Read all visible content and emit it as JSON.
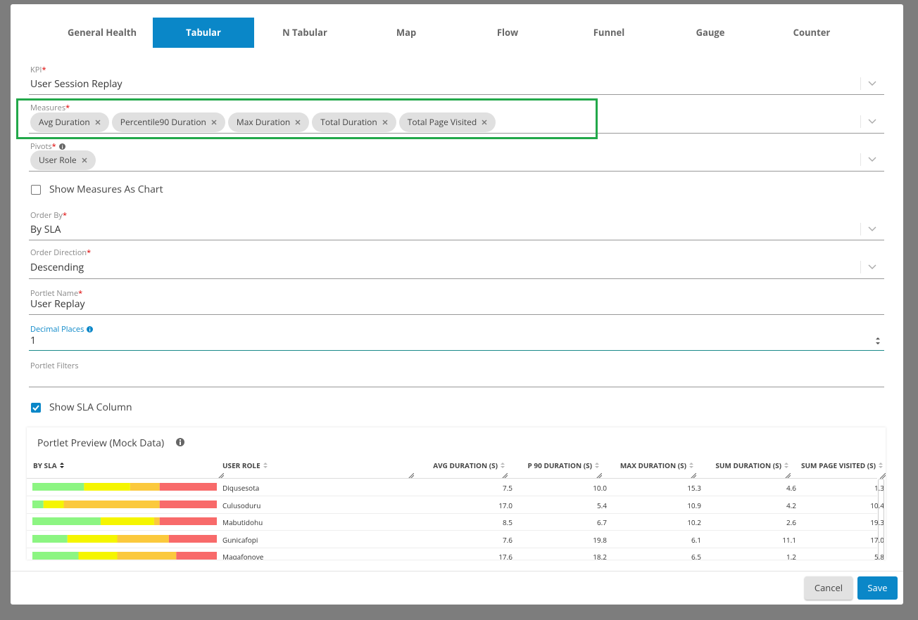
{
  "tabs": [
    "General Health",
    "Tabular",
    "N Tabular",
    "Map",
    "Flow",
    "Funnel",
    "Gauge",
    "Counter"
  ],
  "required_mark": "*",
  "form": {
    "kpi": {
      "label": "KPI",
      "value": "User Session Replay"
    },
    "measures": {
      "label": "Measures",
      "chips": [
        "Avg Duration",
        "Percentile90 Duration",
        "Max Duration",
        "Total Duration",
        "Total Page Visited"
      ]
    },
    "pivots": {
      "label": "Pivots",
      "chips": [
        "User Role"
      ]
    },
    "show_measures_as_chart": {
      "label": "Show Measures As Chart",
      "checked": false
    },
    "order_by": {
      "label": "Order By",
      "value": "By SLA"
    },
    "order_direction": {
      "label": "Order Direction",
      "value": "Descending"
    },
    "portlet_name": {
      "label": "Portlet Name",
      "value": "User Replay"
    },
    "decimal_places": {
      "label": "Decimal Places",
      "value": "1"
    },
    "portlet_filters": {
      "label": "Portlet Filters"
    },
    "show_sla_column": {
      "label": "Show SLA Column",
      "checked": true
    }
  },
  "preview": {
    "title": "Portlet Preview (Mock Data)",
    "columns": [
      "BY SLA",
      "USER ROLE",
      "AVG DURATION (S)",
      "P 90 DURATION (S)",
      "MAX DURATION (S)",
      "SUM DURATION (S)",
      "SUM PAGE VISITED (S)"
    ],
    "rows": [
      {
        "sla": [
          28,
          25,
          16,
          31
        ],
        "cells": [
          "Diqusesota",
          "7.5",
          "10.0",
          "15.3",
          "4.6",
          "1.3"
        ]
      },
      {
        "sla": [
          6,
          11,
          52,
          31
        ],
        "cells": [
          "Culusoduru",
          "17.0",
          "5.4",
          "10.9",
          "4.2",
          "10.4"
        ]
      },
      {
        "sla": [
          37,
          29,
          3,
          31
        ],
        "cells": [
          "Mabutidohu",
          "8.5",
          "6.7",
          "10.2",
          "2.6",
          "19.3"
        ]
      },
      {
        "sla": [
          19,
          27,
          28,
          26
        ],
        "cells": [
          "Gunicafopi",
          "7.6",
          "19.8",
          "6.1",
          "11.1",
          "17.0"
        ]
      },
      {
        "sla": [
          25,
          21,
          32,
          22
        ],
        "cells": [
          "Maqafonove",
          "17.6",
          "18.2",
          "6.5",
          "1.2",
          "5.8"
        ]
      }
    ]
  },
  "buttons": {
    "cancel": "Cancel",
    "save": "Save"
  }
}
